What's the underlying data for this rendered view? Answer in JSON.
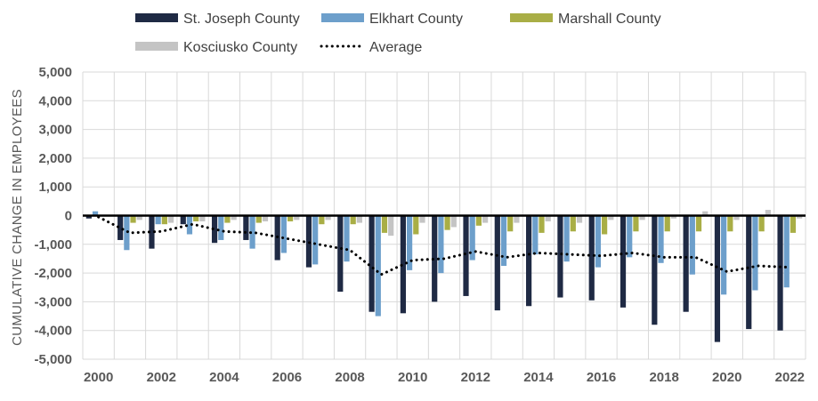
{
  "chart_data": {
    "type": "bar",
    "title": "",
    "xlabel": "",
    "ylabel": "CUMULATIVE CHANGE IN EMPLOYEES",
    "ylim": [
      -5000,
      5000
    ],
    "yticks": [
      5000,
      4000,
      3000,
      2000,
      1000,
      0,
      -1000,
      -2000,
      -3000,
      -4000,
      -5000
    ],
    "ytick_labels": [
      "5,000",
      "4,000",
      "3,000",
      "2,000",
      "1,000",
      "0",
      "-1,000",
      "-2,000",
      "-3,000",
      "-4,000",
      "-5,000"
    ],
    "categories": [
      "2000",
      "2001",
      "2002",
      "2003",
      "2004",
      "2005",
      "2006",
      "2007",
      "2008",
      "2009",
      "2010",
      "2011",
      "2012",
      "2013",
      "2014",
      "2015",
      "2016",
      "2017",
      "2018",
      "2019",
      "2020",
      "2021",
      "2022"
    ],
    "xtick_labels": [
      "2000",
      "2002",
      "2004",
      "2006",
      "2008",
      "2010",
      "2012",
      "2014",
      "2016",
      "2018",
      "2020",
      "2022"
    ],
    "grid": true,
    "legend_position": "top",
    "series": [
      {
        "name": "St. Joseph County",
        "color": "#1f2a44",
        "values": [
          -100,
          -850,
          -1150,
          -300,
          -950,
          -850,
          -1550,
          -1800,
          -2650,
          -3350,
          -3400,
          -3000,
          -2800,
          -3300,
          -3150,
          -2850,
          -2950,
          -3200,
          -3800,
          -3350,
          -4400,
          -3950,
          -4000
        ]
      },
      {
        "name": "Elkhart County",
        "color": "#6d9fcb",
        "values": [
          150,
          -1200,
          -300,
          -650,
          -850,
          -1150,
          -1300,
          -1700,
          -1600,
          -3500,
          -1900,
          -2000,
          -1550,
          -1750,
          -1350,
          -1600,
          -1800,
          -1450,
          -1650,
          -2050,
          -2750,
          -2600,
          -2500
        ]
      },
      {
        "name": "Marshall County",
        "color": "#a9ae46",
        "values": [
          0,
          -250,
          -300,
          -200,
          -250,
          -250,
          -200,
          -300,
          -300,
          -600,
          -650,
          -500,
          -350,
          -550,
          -600,
          -550,
          -650,
          -550,
          -550,
          -550,
          -550,
          -550,
          -600
        ]
      },
      {
        "name": "Kosciusko County",
        "color": "#c4c4c4",
        "values": [
          0,
          -150,
          -250,
          -200,
          -150,
          -200,
          -150,
          -150,
          -250,
          -700,
          -250,
          -400,
          -250,
          -250,
          -200,
          -250,
          -150,
          -150,
          -100,
          150,
          -150,
          200,
          -100
        ]
      },
      {
        "name": "Average",
        "color": "#000000",
        "type": "line",
        "style": "dotted",
        "values": [
          -50,
          -600,
          -550,
          -300,
          -550,
          -600,
          -800,
          -1000,
          -1200,
          -2050,
          -1550,
          -1500,
          -1250,
          -1450,
          -1300,
          -1350,
          -1400,
          -1300,
          -1450,
          -1450,
          -1950,
          -1750,
          -1800
        ]
      }
    ]
  }
}
